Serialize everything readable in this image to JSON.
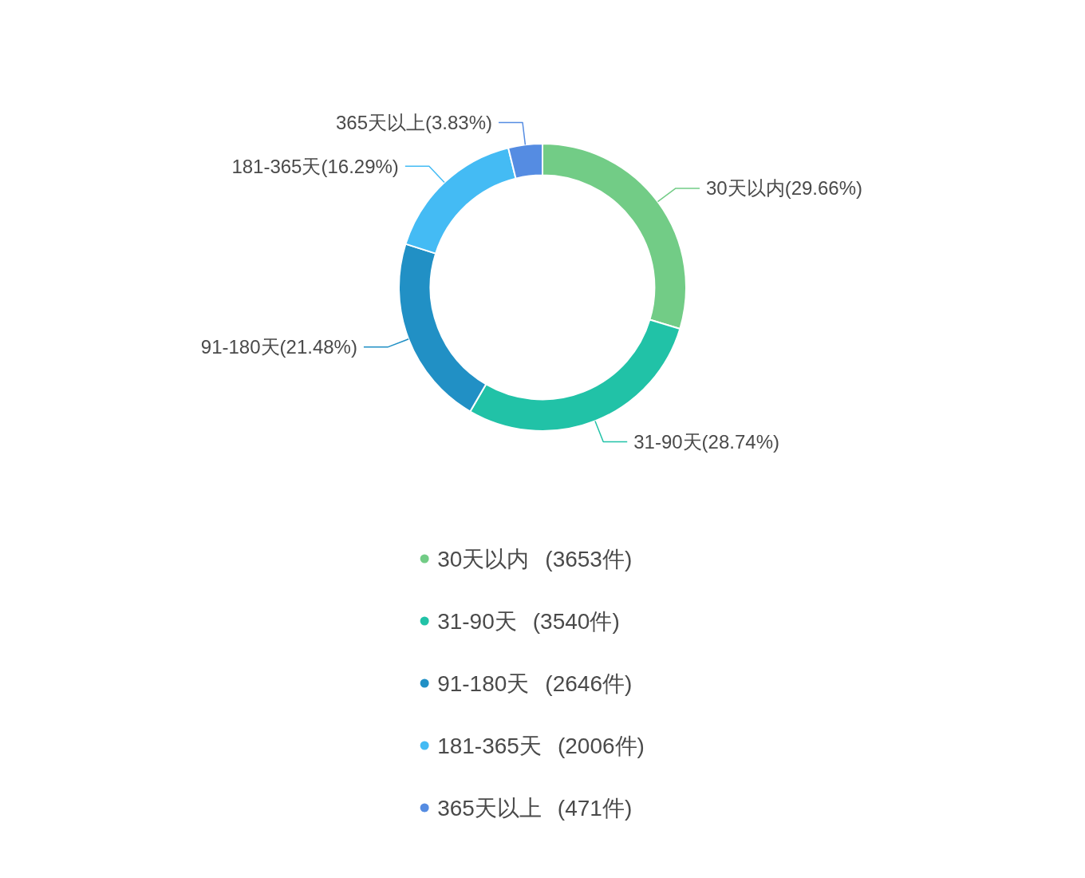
{
  "chart_data": {
    "type": "donut",
    "categories": [
      "30天以内",
      "31-90天",
      "91-180天",
      "181-365天",
      "365天以上"
    ],
    "values": [
      29.66,
      28.74,
      21.48,
      16.29,
      3.83
    ],
    "colors": [
      "#72cc86",
      "#21c2a7",
      "#2190c5",
      "#44bbf4",
      "#558ce2"
    ],
    "value_labels": [
      "(29.66%)",
      "(28.74%)",
      "(21.48%)",
      "(16.29%)",
      "(3.83%)"
    ],
    "annotations": [
      "(3653件)",
      "(3540件)",
      "(2646件)",
      "(2006件)",
      "(471件)"
    ],
    "legend": "bottom"
  }
}
